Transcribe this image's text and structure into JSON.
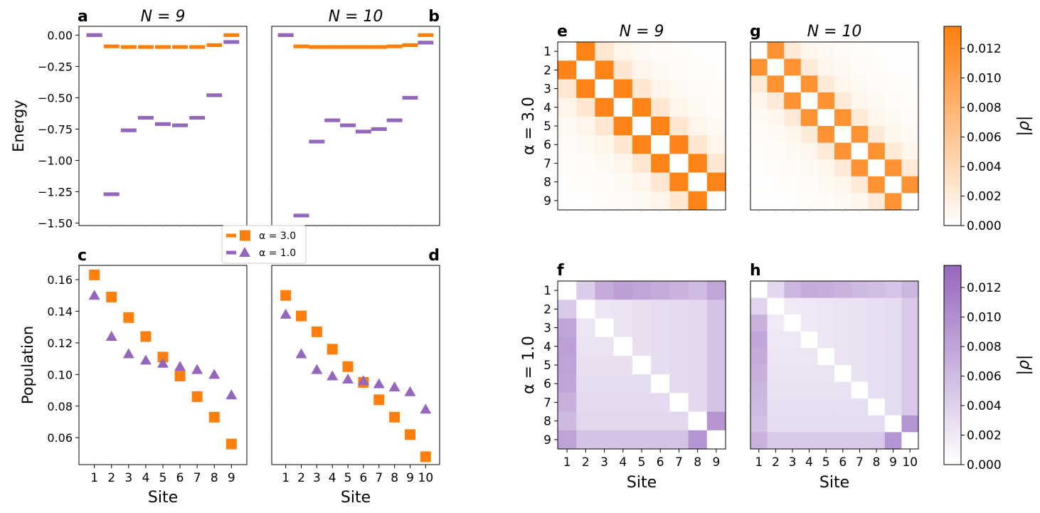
{
  "colors": {
    "alpha3": "#FF7F0E",
    "alpha1": "#9467BD",
    "axis": "#000000",
    "background": "#FFFFFF"
  },
  "legend": {
    "placement": "between-panels",
    "entries": [
      {
        "label": "α = 3.0",
        "color": "#FF7F0E",
        "markers": [
          "bar-icon",
          "square-icon"
        ]
      },
      {
        "label": "α = 1.0",
        "color": "#9467BD",
        "markers": [
          "bar-icon",
          "triangle-icon"
        ]
      }
    ]
  },
  "chart_data": [
    {
      "panel": "a",
      "type": "scatter",
      "marker": "bar",
      "title": "N = 9",
      "ylabel": "Energy",
      "ylim": [
        -1.52,
        0.07
      ],
      "yticks": [
        "0.00",
        "−0.25",
        "−0.50",
        "−0.75",
        "−1.00",
        "−1.25",
        "−1.50"
      ],
      "ytick_values": [
        0,
        -0.25,
        -0.5,
        -0.75,
        -1.0,
        -1.25,
        -1.5
      ],
      "x": [
        1,
        2,
        3,
        4,
        5,
        6,
        7,
        8,
        9
      ],
      "xlim": [
        0.1,
        9.9
      ],
      "series": [
        {
          "name": "α = 3.0",
          "color": "#FF7F0E",
          "values": [
            0.0,
            -0.09,
            -0.095,
            -0.095,
            -0.095,
            -0.095,
            -0.095,
            -0.08,
            0.0
          ]
        },
        {
          "name": "α = 1.0",
          "color": "#9467BD",
          "values": [
            0.0,
            -1.27,
            -0.76,
            -0.66,
            -0.71,
            -0.72,
            -0.66,
            -0.48,
            -0.055
          ]
        }
      ]
    },
    {
      "panel": "b",
      "type": "scatter",
      "marker": "bar",
      "title": "N = 10",
      "ylim": [
        -1.52,
        0.07
      ],
      "x": [
        1,
        2,
        3,
        4,
        5,
        6,
        7,
        8,
        9,
        10
      ],
      "xlim": [
        0.1,
        10.9
      ],
      "series": [
        {
          "name": "α = 3.0",
          "color": "#FF7F0E",
          "values": [
            0.0,
            -0.09,
            -0.095,
            -0.095,
            -0.095,
            -0.095,
            -0.095,
            -0.09,
            -0.08,
            0.0
          ]
        },
        {
          "name": "α = 1.0",
          "color": "#9467BD",
          "values": [
            0.0,
            -1.44,
            -0.85,
            -0.68,
            -0.72,
            -0.77,
            -0.75,
            -0.68,
            -0.5,
            -0.06
          ]
        }
      ]
    },
    {
      "panel": "c",
      "type": "scatter",
      "ylabel": "Population",
      "xlabel": "Site",
      "ylim": [
        0.043,
        0.169
      ],
      "yticks": [
        "0.16",
        "0.14",
        "0.12",
        "0.10",
        "0.08",
        "0.06"
      ],
      "ytick_values": [
        0.16,
        0.14,
        0.12,
        0.1,
        0.08,
        0.06
      ],
      "x": [
        1,
        2,
        3,
        4,
        5,
        6,
        7,
        8,
        9
      ],
      "xlim": [
        0.1,
        9.9
      ],
      "xticks": [
        "1",
        "2",
        "3",
        "4",
        "5",
        "6",
        "7",
        "8",
        "9"
      ],
      "series": [
        {
          "name": "α = 3.0",
          "marker": "square",
          "color": "#FF7F0E",
          "values": [
            0.163,
            0.149,
            0.136,
            0.124,
            0.111,
            0.099,
            0.086,
            0.073,
            0.056
          ]
        },
        {
          "name": "α = 1.0",
          "marker": "triangle",
          "color": "#9467BD",
          "values": [
            0.15,
            0.124,
            0.113,
            0.109,
            0.107,
            0.105,
            0.103,
            0.1,
            0.087
          ]
        }
      ]
    },
    {
      "panel": "d",
      "type": "scatter",
      "xlabel": "Site",
      "ylim": [
        0.043,
        0.169
      ],
      "x": [
        1,
        2,
        3,
        4,
        5,
        6,
        7,
        8,
        9,
        10
      ],
      "xlim": [
        0.1,
        10.9
      ],
      "xticks": [
        "1",
        "2",
        "3",
        "4",
        "5",
        "6",
        "7",
        "8",
        "9",
        "10"
      ],
      "series": [
        {
          "name": "α = 3.0",
          "marker": "square",
          "color": "#FF7F0E",
          "values": [
            0.15,
            0.137,
            0.127,
            0.116,
            0.105,
            0.095,
            0.084,
            0.073,
            0.062,
            0.048
          ]
        },
        {
          "name": "α = 1.0",
          "marker": "triangle",
          "color": "#9467BD",
          "values": [
            0.138,
            0.113,
            0.103,
            0.099,
            0.097,
            0.096,
            0.094,
            0.092,
            0.089,
            0.078
          ]
        }
      ]
    },
    {
      "panel": "e",
      "type": "heatmap",
      "title": "N = 9",
      "row_label": "α = 3.0",
      "n": 9,
      "yticks": [
        "1",
        "2",
        "3",
        "4",
        "5",
        "6",
        "7",
        "8",
        "9"
      ],
      "color": "#FF7F0E",
      "vmax": 0.0135,
      "diag_zero": true,
      "band_values": [
        0.013,
        0.0025,
        0.0011,
        0.0006,
        0.0004,
        0.0003,
        0.0002,
        0.0002
      ]
    },
    {
      "panel": "g",
      "type": "heatmap",
      "title": "N = 10",
      "n": 10,
      "color": "#FF7F0E",
      "vmax": 0.0135,
      "diag_zero": true,
      "band_values": [
        0.0115,
        0.0022,
        0.001,
        0.0006,
        0.0004,
        0.0003,
        0.0002,
        0.0002,
        0.0002
      ]
    },
    {
      "panel": "f",
      "type": "heatmap",
      "row_label": "α = 1.0",
      "xlabel": "Site",
      "n": 9,
      "yticks": [
        "1",
        "2",
        "3",
        "4",
        "5",
        "6",
        "7",
        "8",
        "9"
      ],
      "xticks": [
        "1",
        "2",
        "3",
        "4",
        "5",
        "6",
        "7",
        "8",
        "9"
      ],
      "color": "#9467BD",
      "vmax": 0.0135,
      "diag_zero": true,
      "edge_row": [
        0,
        0.0045,
        0.0075,
        0.0085,
        0.008,
        0.0075,
        0.0068,
        0.006,
        0.008
      ],
      "edge_col": [
        0,
        0.0048,
        0.0078,
        0.0085,
        0.0082,
        0.0078,
        0.007,
        0.0062,
        0.0082
      ],
      "interior_base": 0.0018,
      "interior_slope": 0.00025
    },
    {
      "panel": "h",
      "type": "heatmap",
      "xlabel": "Site",
      "n": 10,
      "xticks": [
        "1",
        "2",
        "3",
        "4",
        "5",
        "6",
        "7",
        "8",
        "9",
        "10"
      ],
      "color": "#9467BD",
      "vmax": 0.0135,
      "diag_zero": true,
      "edge_row": [
        0,
        0.0035,
        0.0065,
        0.0075,
        0.0072,
        0.0068,
        0.0062,
        0.0058,
        0.0052,
        0.0065
      ],
      "edge_col": [
        0,
        0.0038,
        0.0068,
        0.0078,
        0.0075,
        0.007,
        0.0065,
        0.006,
        0.0055,
        0.0068
      ],
      "interior_base": 0.0015,
      "interior_slope": 0.0002
    }
  ],
  "colorbars": [
    {
      "color": "#FF7F0E",
      "label": "|ρ|",
      "vmin": 0,
      "vmax": 0.0135,
      "ticks": [
        "0.000",
        "0.002",
        "0.004",
        "0.006",
        "0.008",
        "0.010",
        "0.012"
      ],
      "tick_values": [
        0,
        0.002,
        0.004,
        0.006,
        0.008,
        0.01,
        0.012
      ]
    },
    {
      "color": "#9467BD",
      "label": "|ρ|",
      "vmin": 0,
      "vmax": 0.0135,
      "ticks": [
        "0.000",
        "0.002",
        "0.004",
        "0.006",
        "0.008",
        "0.010",
        "0.012"
      ],
      "tick_values": [
        0,
        0.002,
        0.004,
        0.006,
        0.008,
        0.01,
        0.012
      ]
    }
  ]
}
